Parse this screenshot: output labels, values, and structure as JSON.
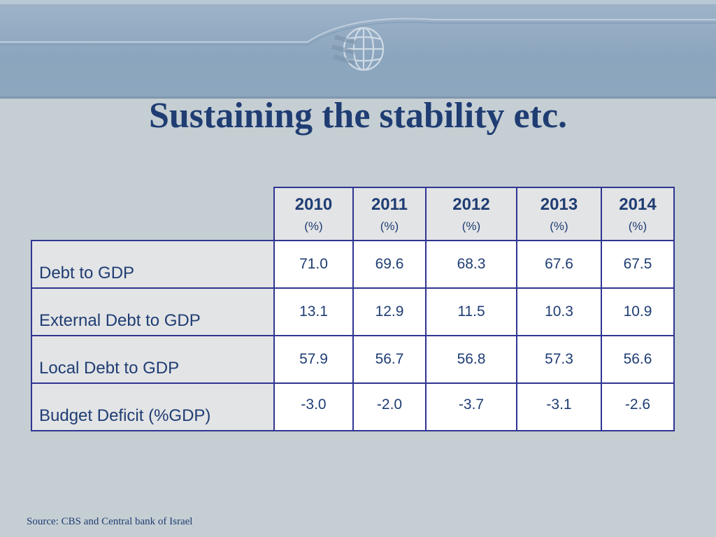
{
  "slide": {
    "title": "Sustaining the stability etc.",
    "source": "Source: CBS and Central bank of Israel"
  },
  "table": {
    "columns": [
      {
        "year": "2010",
        "unit": "(%)"
      },
      {
        "year": "2011",
        "unit": "(%)"
      },
      {
        "year": "2012",
        "unit": "(%)"
      },
      {
        "year": "2013",
        "unit": "(%)"
      },
      {
        "year": "2014",
        "unit": "(%)"
      }
    ],
    "rows": [
      {
        "label": "Debt to GDP",
        "values": [
          "71.0",
          "69.6",
          "68.3",
          "67.6",
          "67.5"
        ]
      },
      {
        "label": "External Debt to GDP",
        "values": [
          "13.1",
          "12.9",
          "11.5",
          "10.3",
          "10.9"
        ]
      },
      {
        "label": "Local Debt to GDP",
        "values": [
          "57.9",
          "56.7",
          "56.8",
          "57.3",
          "56.6"
        ]
      },
      {
        "label": "Budget Deficit (%GDP)",
        "values": [
          "-3.0",
          "-2.0",
          "-3.7",
          "-3.1",
          "-2.6"
        ]
      }
    ]
  },
  "colors": {
    "title": "#1f3d73",
    "border": "#2f3591",
    "header_bg": "#e3e4e6",
    "banner": "#8ba5be",
    "background": "#c5ced3"
  }
}
